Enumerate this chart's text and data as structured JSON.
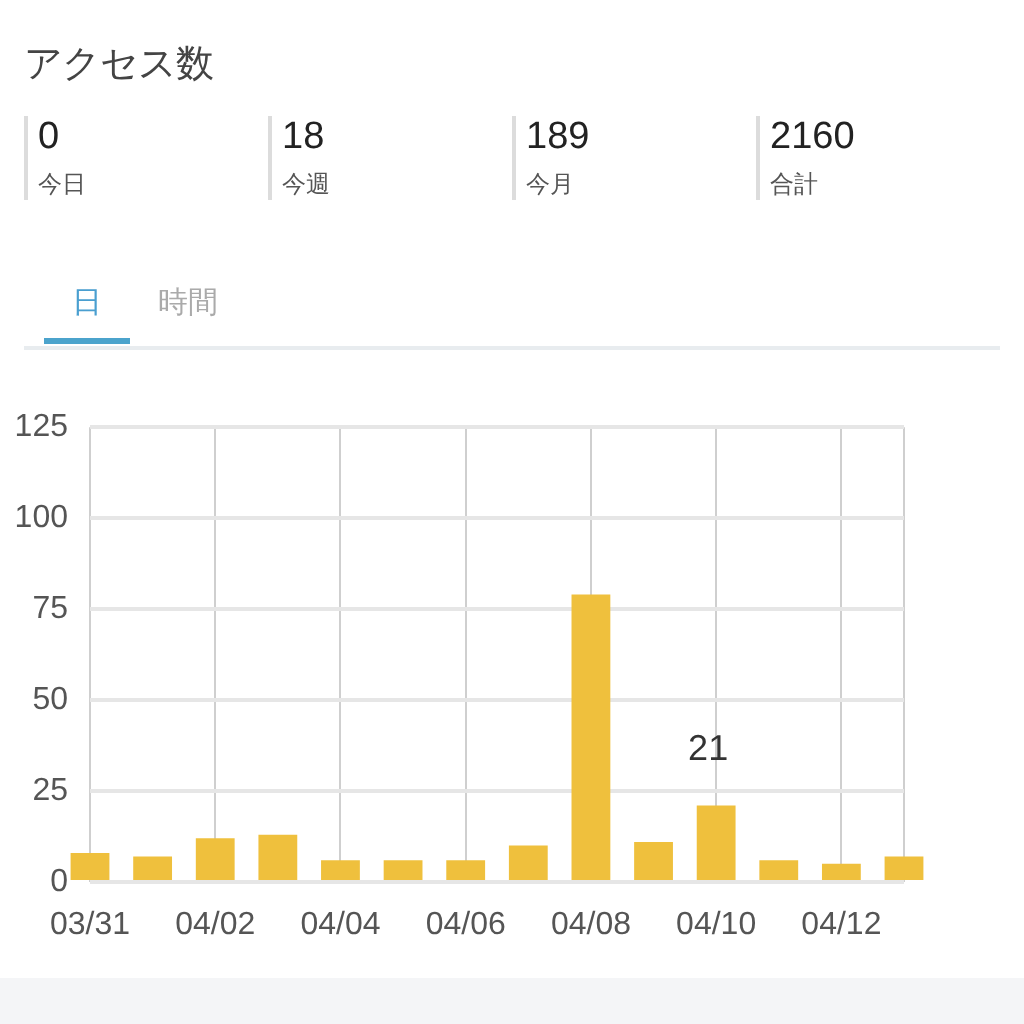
{
  "chart_data": [
    {
      "type": "other",
      "title": "アクセス数",
      "annotations": [
        "0",
        "今日",
        "18",
        "今週",
        "189",
        "今月",
        "2160",
        "合計"
      ]
    },
    {
      "type": "bar",
      "annotations": [
        "日",
        "時間"
      ],
      "categories": [
        "03/31",
        null,
        "04/02",
        null,
        "04/04",
        null,
        "04/06",
        null,
        "04/08",
        null,
        "04/10",
        null,
        "04/12",
        null
      ],
      "values": [
        8,
        7,
        12,
        13,
        6,
        6,
        6,
        10,
        79,
        11,
        21,
        6,
        5,
        7
      ],
      "color": "#efc03d",
      "value_labels": [
        null,
        null,
        null,
        null,
        null,
        null,
        null,
        null,
        null,
        null,
        "21",
        null,
        null,
        null
      ],
      "ylim": [
        0,
        125
      ],
      "yticks": [
        0,
        25,
        50,
        75,
        100,
        125
      ],
      "grid": true
    }
  ]
}
